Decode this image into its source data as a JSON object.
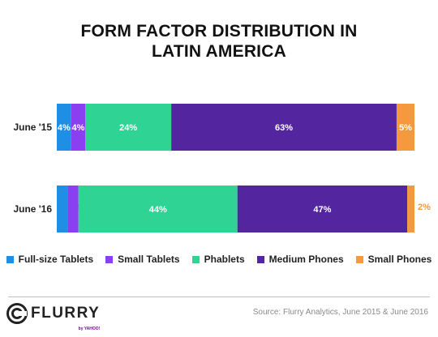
{
  "title": [
    "FORM FACTOR DISTRIBUTION IN",
    "LATIN AMERICA"
  ],
  "footer": {
    "logo_text": "FLURRY",
    "logo_sub": "by YAHOO!",
    "source": "Source: Flurry Analytics, June 2015 & June 2016"
  },
  "chart_data": {
    "type": "bar",
    "orientation": "horizontal",
    "stacked": true,
    "normalized": true,
    "categories": [
      "June '15",
      "June '16"
    ],
    "series": [
      {
        "name": "Full-size Tablets",
        "color": "#1f8fe6",
        "values": [
          4,
          3
        ],
        "labels": [
          "4%",
          "3%"
        ]
      },
      {
        "name": "Small Tablets",
        "color": "#8a3ff0",
        "values": [
          4,
          3
        ],
        "labels": [
          "4%",
          "3%"
        ]
      },
      {
        "name": "Phablets",
        "color": "#2fd494",
        "values": [
          24,
          44
        ],
        "labels": [
          "24%",
          "44%"
        ]
      },
      {
        "name": "Medium Phones",
        "color": "#5326a0",
        "values": [
          63,
          47
        ],
        "labels": [
          "63%",
          "47%"
        ]
      },
      {
        "name": "Small Phones",
        "color": "#f59a3c",
        "values": [
          5,
          2
        ],
        "labels": [
          "5%",
          "2%"
        ]
      }
    ],
    "legend_position": "bottom",
    "grid": false
  }
}
